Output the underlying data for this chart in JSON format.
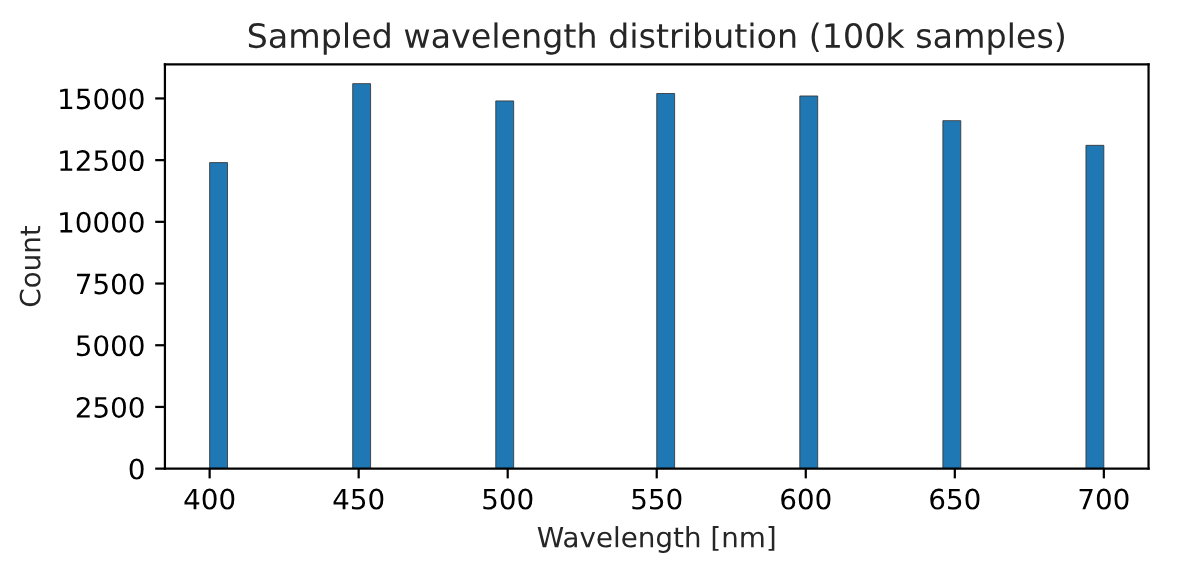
{
  "chart_data": {
    "type": "histogram",
    "title": "Sampled wavelength distribution (100k samples)",
    "xlabel": "Wavelength [nm]",
    "ylabel": "Count",
    "bins": [
      400,
      406,
      412,
      418,
      424,
      430,
      436,
      442,
      448,
      454,
      460,
      466,
      472,
      478,
      484,
      490,
      496,
      502,
      508,
      514,
      520,
      526,
      532,
      538,
      544,
      550,
      556,
      562,
      568,
      574,
      580,
      586,
      592,
      598,
      604,
      610,
      616,
      622,
      628,
      634,
      640,
      646,
      652,
      658,
      664,
      670,
      676,
      682,
      688,
      694,
      700
    ],
    "values": [
      12400,
      0,
      0,
      0,
      0,
      0,
      0,
      0,
      15600,
      0,
      0,
      0,
      0,
      0,
      0,
      0,
      14900,
      0,
      0,
      0,
      0,
      0,
      0,
      0,
      0,
      15200,
      0,
      0,
      0,
      0,
      0,
      0,
      0,
      15100,
      0,
      0,
      0,
      0,
      0,
      0,
      0,
      14100,
      0,
      0,
      0,
      0,
      0,
      0,
      0,
      13100
    ],
    "color": "#1f77b4",
    "xlim": [
      385,
      715
    ],
    "xticks": [
      400,
      450,
      500,
      550,
      600,
      650,
      700
    ],
    "ylim": [
      0,
      16380
    ],
    "yticks": [
      0,
      2500,
      5000,
      7500,
      10000,
      12500,
      15000
    ],
    "grid": false,
    "legend": false
  }
}
